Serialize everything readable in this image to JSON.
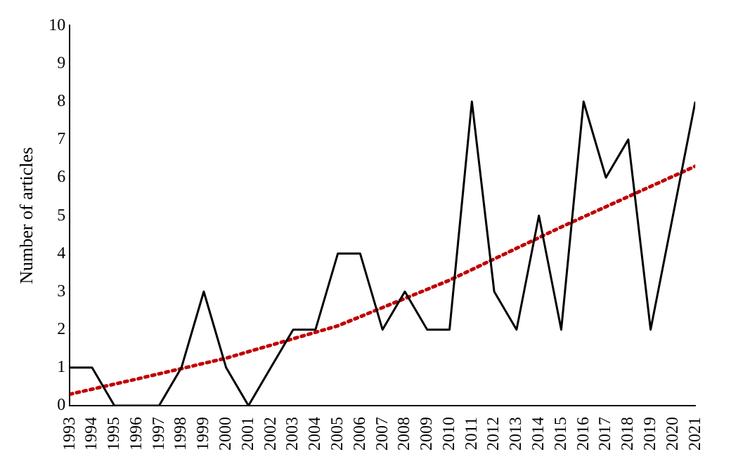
{
  "chart_data": {
    "type": "line",
    "ylabel": "Number of articles",
    "x": [
      1993,
      1994,
      1995,
      1996,
      1997,
      1998,
      1999,
      2000,
      2001,
      2002,
      2003,
      2004,
      2005,
      2006,
      2007,
      2008,
      2009,
      2010,
      2011,
      2012,
      2013,
      2014,
      2015,
      2016,
      2017,
      2018,
      2019,
      2020,
      2021
    ],
    "series": [
      {
        "color": "#000000",
        "values": [
          1,
          1,
          0,
          0,
          0,
          1,
          3,
          1,
          0,
          1,
          2,
          2,
          4,
          4,
          2,
          3,
          2,
          2,
          8,
          3,
          2,
          5,
          2,
          8,
          6,
          7,
          2,
          5,
          8
        ]
      },
      {
        "type": "line",
        "color": "#c00000",
        "line_style": "dotted",
        "x": [
          1993,
          1996,
          2000,
          2005,
          2010,
          2015,
          2018,
          2021
        ],
        "values": [
          0.3,
          0.7,
          1.25,
          2.1,
          3.3,
          4.7,
          5.5,
          6.3
        ]
      }
    ],
    "xlim": [
      1993,
      2021
    ],
    "xticks": [
      1993,
      1994,
      1995,
      1996,
      1997,
      1998,
      1999,
      2000,
      2001,
      2002,
      2003,
      2004,
      2005,
      2006,
      2007,
      2008,
      2009,
      2010,
      2011,
      2012,
      2013,
      2014,
      2015,
      2016,
      2017,
      2018,
      2019,
      2020,
      2021
    ],
    "ylim": [
      0,
      10
    ],
    "yticks": [
      0,
      1,
      2,
      3,
      4,
      5,
      6,
      7,
      8,
      9,
      10
    ],
    "grid": false,
    "legend": false,
    "marker": "none",
    "line_style": "solid"
  }
}
